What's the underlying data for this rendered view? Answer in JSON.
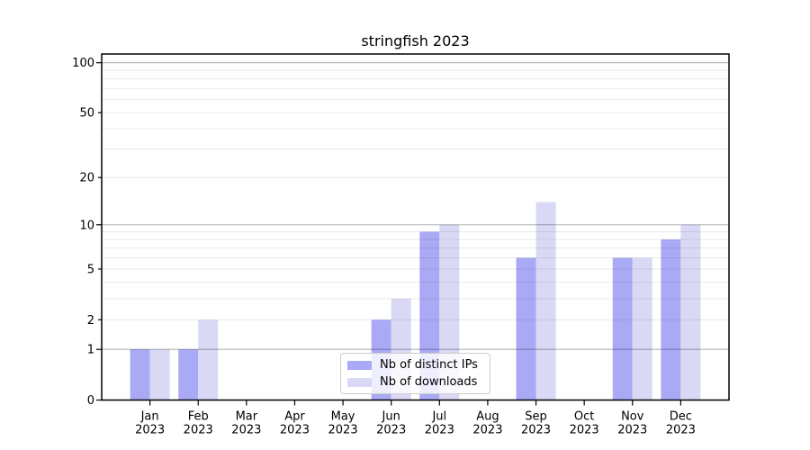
{
  "chart_data": {
    "type": "bar",
    "title": "stringfish 2023",
    "categories": [
      "Jan",
      "Feb",
      "Mar",
      "Apr",
      "May",
      "Jun",
      "Jul",
      "Aug",
      "Sep",
      "Oct",
      "Nov",
      "Dec"
    ],
    "year_label": "2023",
    "series": [
      {
        "key": "distinct-ips",
        "name": "Nb of distinct IPs",
        "color": "#a9a9f5",
        "values": [
          1,
          1,
          0,
          0,
          0,
          2,
          9,
          0,
          6,
          0,
          6,
          8
        ]
      },
      {
        "key": "downloads",
        "name": "Nb of downloads",
        "color": "#d9d9f5",
        "values": [
          1,
          2,
          0,
          0,
          0,
          3,
          10,
          0,
          14,
          0,
          6,
          10
        ]
      }
    ],
    "yscale": "log1p",
    "ylim": [
      0,
      112
    ],
    "y_ticks": [
      {
        "value": 0,
        "label": "0",
        "major": true
      },
      {
        "value": 1,
        "label": "1",
        "major": true
      },
      {
        "value": 2,
        "label": "2",
        "major": false
      },
      {
        "value": 5,
        "label": "5",
        "major": false
      },
      {
        "value": 10,
        "label": "10",
        "major": true
      },
      {
        "value": 20,
        "label": "20",
        "major": false
      },
      {
        "value": 50,
        "label": "50",
        "major": false
      },
      {
        "value": 100,
        "label": "100",
        "major": true
      }
    ],
    "y_minor_gridlines": [
      2,
      3,
      4,
      5,
      6,
      7,
      8,
      9,
      20,
      30,
      40,
      50,
      60,
      70,
      80,
      90
    ],
    "y_major_gridlines": [
      1,
      10,
      100
    ],
    "grid_on_top_of_bars": true,
    "legend_position": "lower center",
    "colors": {
      "axis": "#000000",
      "major_grid": "rgba(0,0,0,0.30)",
      "minor_grid": "rgba(0,0,0,0.085)",
      "legend_border": "#cccccc"
    }
  }
}
